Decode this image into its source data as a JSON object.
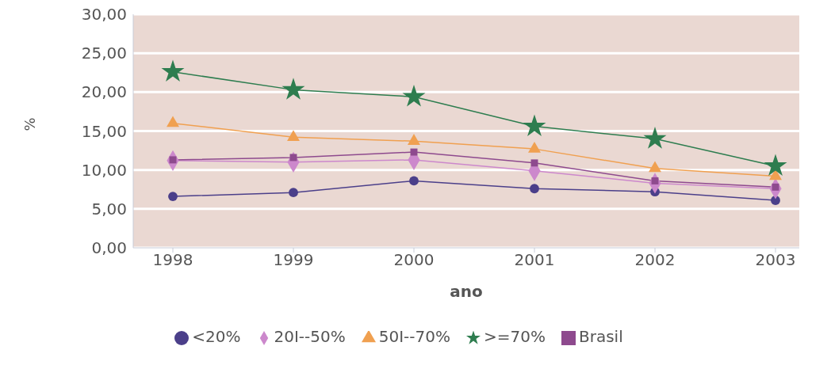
{
  "chart_data": {
    "type": "line",
    "xlabel": "ano",
    "ylabel": "%",
    "categories": [
      "1998",
      "1999",
      "2000",
      "2001",
      "2002",
      "2003"
    ],
    "series": [
      {
        "name": "<20%",
        "color": "#4b3f8a",
        "marker": "circle",
        "values": [
          6.6,
          7.1,
          8.6,
          7.6,
          7.2,
          6.1
        ]
      },
      {
        "name": "20I--50%",
        "color": "#cc88cc",
        "marker": "diamond",
        "values": [
          11.2,
          11.0,
          11.3,
          9.9,
          8.3,
          7.6
        ]
      },
      {
        "name": "50I--70%",
        "color": "#f0a050",
        "marker": "triangle",
        "values": [
          16.0,
          14.2,
          13.7,
          12.7,
          10.2,
          9.2
        ]
      },
      {
        "name": ">=70%",
        "color": "#2e7d4f",
        "marker": "star",
        "values": [
          22.6,
          20.3,
          19.4,
          15.6,
          14.0,
          10.5
        ]
      },
      {
        "name": "Brasil",
        "color": "#8e4a8e",
        "marker": "square",
        "values": [
          11.3,
          11.6,
          12.3,
          10.9,
          8.6,
          7.8
        ]
      }
    ],
    "ylim": [
      0,
      30
    ],
    "yticks": [
      {
        "value": 0,
        "label": "0,00"
      },
      {
        "value": 5,
        "label": "5,00"
      },
      {
        "value": 10,
        "label": "10,00"
      },
      {
        "value": 15,
        "label": "15,00"
      },
      {
        "value": 20,
        "label": "20,00"
      },
      {
        "value": 25,
        "label": "25,00"
      },
      {
        "value": 30,
        "label": "30,00"
      }
    ],
    "grid": "y",
    "legend": "bottom"
  }
}
